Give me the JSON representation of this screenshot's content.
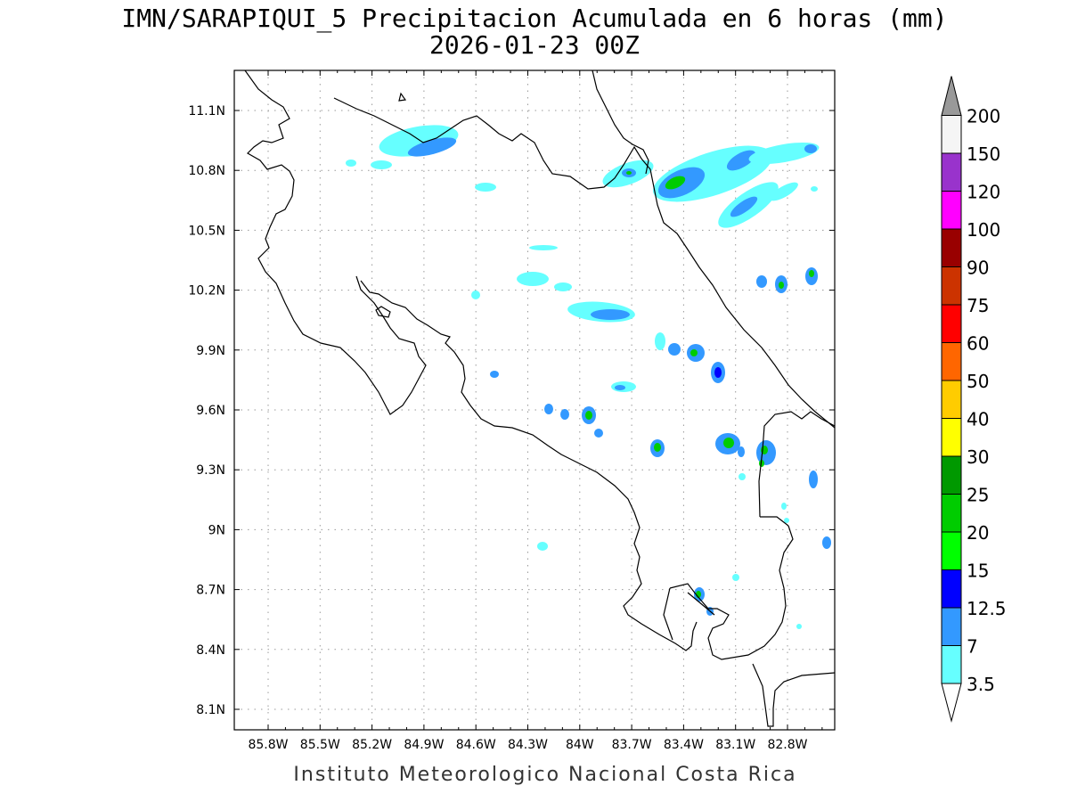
{
  "header": {
    "title": "IMN/SARAPIQUI_5 Precipitacion Acumulada en 6 horas (mm)",
    "subtitle": "2026-01-23 00Z"
  },
  "footer": {
    "credit": "Instituto Meteorologico Nacional Costa Rica"
  },
  "axes": {
    "lon_ticks": [
      "85.8W",
      "85.5W",
      "85.2W",
      "84.9W",
      "84.6W",
      "84.3W",
      "84W",
      "83.7W",
      "83.4W",
      "83.1W",
      "82.8W"
    ],
    "lat_ticks": [
      "11.1N",
      "10.8N",
      "10.5N",
      "10.2N",
      "9.9N",
      "9.6N",
      "9.3N",
      "9N",
      "8.7N",
      "8.4N",
      "8.1N"
    ]
  },
  "colorbar": {
    "levels": [
      "3.5",
      "7",
      "12.5",
      "15",
      "20",
      "25",
      "30",
      "40",
      "50",
      "60",
      "75",
      "90",
      "100",
      "120",
      "150",
      "200"
    ],
    "colors": [
      "#66ffff",
      "#3399ff",
      "#0000ff",
      "#00ff00",
      "#00cc00",
      "#009900",
      "#ffff00",
      "#ffcc00",
      "#ff6600",
      "#ff0000",
      "#cc3300",
      "#990000",
      "#ff00ff",
      "#9933cc",
      "#f5f5f5",
      "#999999"
    ]
  }
}
